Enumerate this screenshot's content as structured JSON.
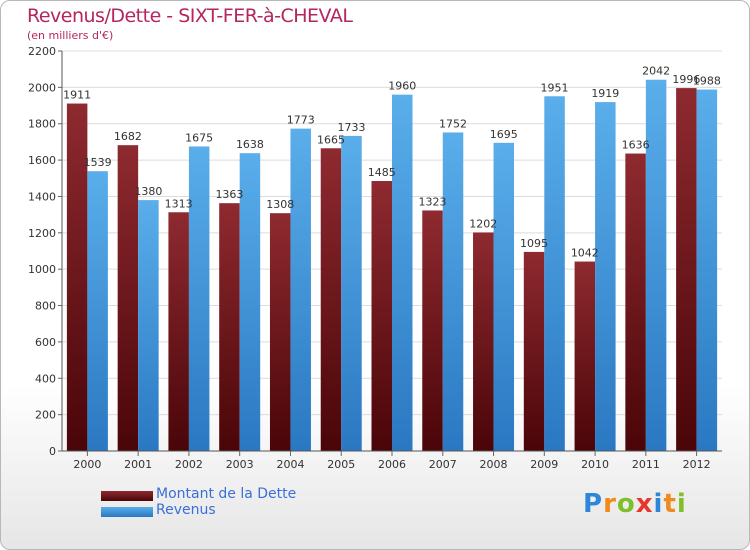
{
  "header": {
    "title": "Revenus/Dette - SIXT-FER-à-CHEVAL",
    "subtitle": "(en milliers d'€)"
  },
  "chart_data": {
    "type": "bar",
    "categories": [
      "2000",
      "2001",
      "2002",
      "2003",
      "2004",
      "2005",
      "2006",
      "2007",
      "2008",
      "2009",
      "2010",
      "2011",
      "2012"
    ],
    "series": [
      {
        "name": "Montant de la Dette",
        "color": "#7a1e22",
        "values": [
          1911,
          1682,
          1313,
          1363,
          1308,
          1665,
          1485,
          1323,
          1202,
          1095,
          1042,
          1636,
          1996
        ]
      },
      {
        "name": "Revenus",
        "color": "#4a9fe0",
        "values": [
          1539,
          1380,
          1675,
          1638,
          1773,
          1733,
          1960,
          1752,
          1695,
          1951,
          1919,
          2042,
          1988
        ]
      }
    ],
    "ylim": [
      0,
      2200
    ],
    "yticks": [
      0,
      200,
      400,
      600,
      800,
      1000,
      1200,
      1400,
      1600,
      1800,
      2000,
      2200
    ],
    "grid": true,
    "legend": "bottom-left"
  },
  "branding": {
    "logo_letters": [
      "P",
      "r",
      "o",
      "x",
      "i",
      "t",
      "i"
    ],
    "logo_colors": [
      "#2f86d6",
      "#f08a1c",
      "#7fbf2a",
      "#e8362b",
      "#2f86d6",
      "#f08a1c",
      "#7fbf2a"
    ]
  }
}
